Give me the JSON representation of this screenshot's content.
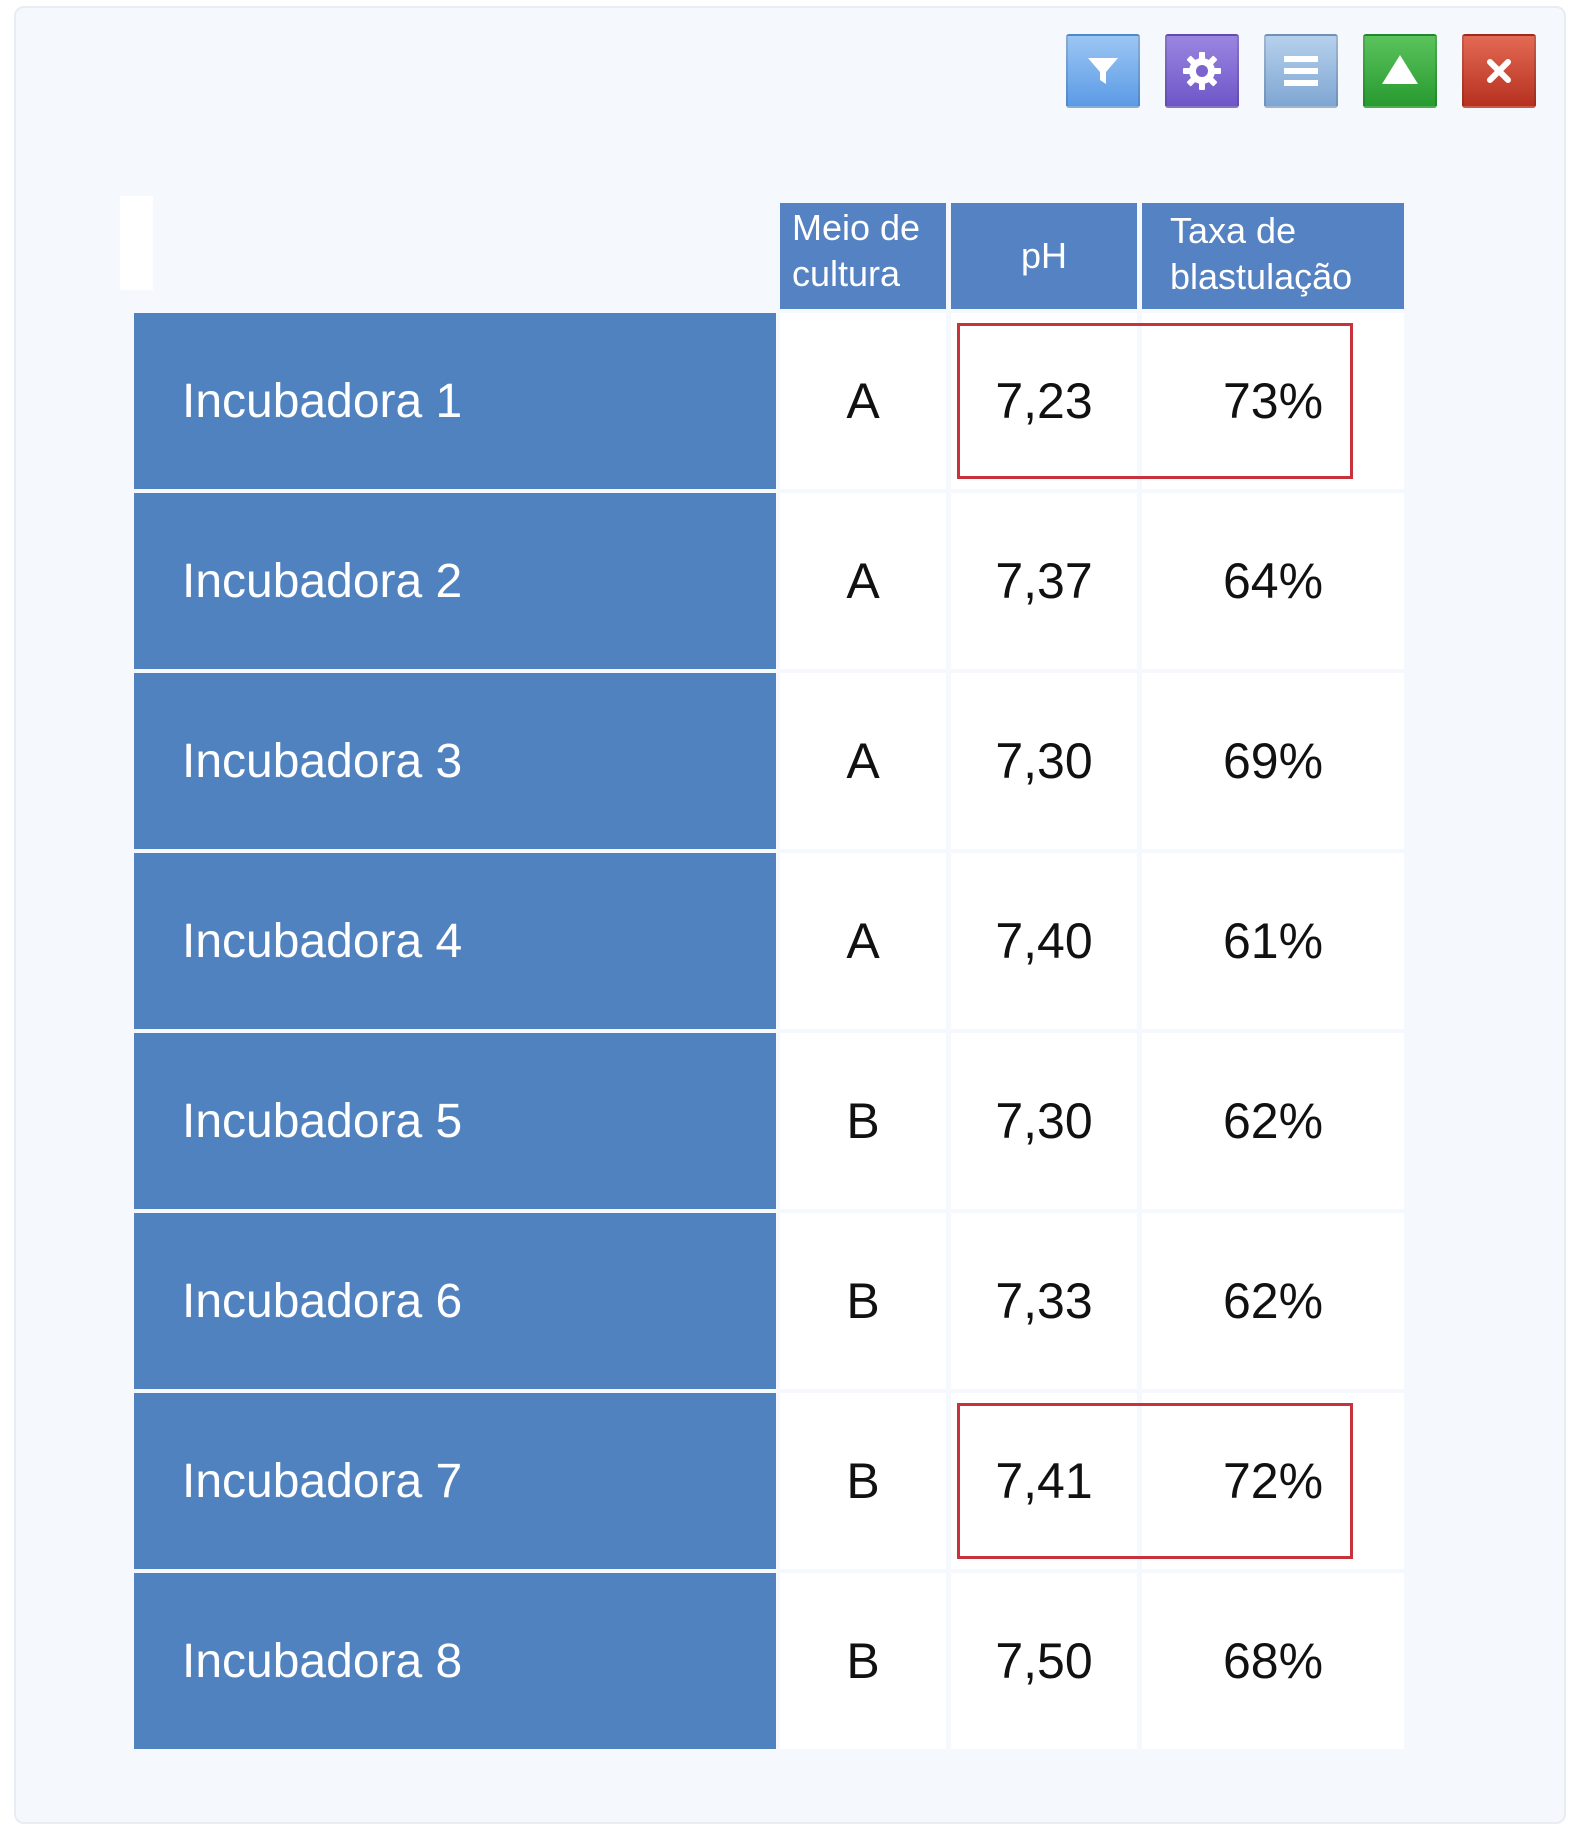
{
  "toolbar": {
    "buttons": [
      {
        "name": "filter-button",
        "icon": "filter-icon",
        "color": "#5b9be6"
      },
      {
        "name": "settings-button",
        "icon": "gear-icon",
        "color": "#6f56c8"
      },
      {
        "name": "menu-button",
        "icon": "menu-icon",
        "color": "#7fa6d3"
      },
      {
        "name": "collapse-button",
        "icon": "triangle-up-icon",
        "color": "#279a30"
      },
      {
        "name": "close-button",
        "icon": "close-icon",
        "color": "#b6311f"
      }
    ]
  },
  "table": {
    "headers": {
      "meio_line1": "Meio de",
      "meio_line2": "cultura",
      "ph": "pH",
      "taxa_line1": "Taxa de",
      "taxa_line2": "blastulação"
    },
    "rows": [
      {
        "label": "Incubadora 1",
        "meio": "A",
        "ph": "7,23",
        "taxa": "73%",
        "highlighted": true
      },
      {
        "label": "Incubadora 2",
        "meio": "A",
        "ph": "7,37",
        "taxa": "64%",
        "highlighted": false
      },
      {
        "label": "Incubadora 3",
        "meio": "A",
        "ph": "7,30",
        "taxa": "69%",
        "highlighted": false
      },
      {
        "label": "Incubadora 4",
        "meio": "A",
        "ph": "7,40",
        "taxa": "61%",
        "highlighted": false
      },
      {
        "label": "Incubadora 5",
        "meio": "B",
        "ph": "7,30",
        "taxa": "62%",
        "highlighted": false
      },
      {
        "label": "Incubadora 6",
        "meio": "B",
        "ph": "7,33",
        "taxa": "62%",
        "highlighted": false
      },
      {
        "label": "Incubadora 7",
        "meio": "B",
        "ph": "7,41",
        "taxa": "72%",
        "highlighted": true
      },
      {
        "label": "Incubadora 8",
        "meio": "B",
        "ph": "7,50",
        "taxa": "68%",
        "highlighted": false
      }
    ]
  },
  "colors": {
    "header_blue": "#5582c2",
    "row_label_blue": "#5182c0",
    "highlight_red": "#c8323c"
  }
}
